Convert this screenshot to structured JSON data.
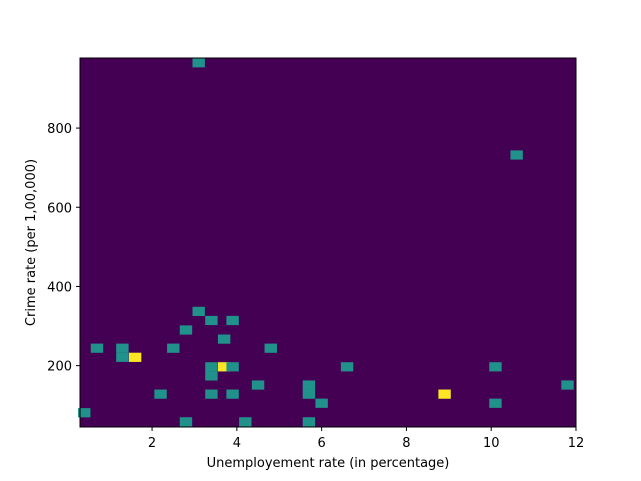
{
  "chart_data": {
    "type": "heatmap",
    "title": "",
    "xlabel": "Unemployement rate (in percentage)",
    "ylabel": "Crime rate (per 1,00,000)",
    "xlim": [
      0.3,
      12.0
    ],
    "ylim": [
      45,
      977
    ],
    "x_ticks": [
      2,
      4,
      6,
      8,
      10,
      12
    ],
    "y_ticks": [
      200,
      400,
      600,
      800
    ],
    "bins": {
      "x": 40,
      "y": 40
    },
    "colormap": {
      "0": "#440154",
      "1": "#21918c",
      "2": "#fde725"
    },
    "background": "#440154",
    "cells": [
      {
        "x": 3.1,
        "y": 965,
        "count": 1
      },
      {
        "x": 10.6,
        "y": 732,
        "count": 1
      },
      {
        "x": 3.1,
        "y": 337,
        "count": 1
      },
      {
        "x": 3.4,
        "y": 314,
        "count": 1
      },
      {
        "x": 3.9,
        "y": 314,
        "count": 1
      },
      {
        "x": 2.8,
        "y": 290,
        "count": 1
      },
      {
        "x": 3.7,
        "y": 267,
        "count": 1
      },
      {
        "x": 0.7,
        "y": 244,
        "count": 1
      },
      {
        "x": 1.3,
        "y": 244,
        "count": 1
      },
      {
        "x": 2.5,
        "y": 244,
        "count": 1
      },
      {
        "x": 4.8,
        "y": 244,
        "count": 1
      },
      {
        "x": 1.3,
        "y": 221,
        "count": 1
      },
      {
        "x": 1.6,
        "y": 221,
        "count": 2
      },
      {
        "x": 3.4,
        "y": 197,
        "count": 1
      },
      {
        "x": 3.7,
        "y": 197,
        "count": 2
      },
      {
        "x": 3.9,
        "y": 197,
        "count": 1
      },
      {
        "x": 6.6,
        "y": 197,
        "count": 1
      },
      {
        "x": 10.1,
        "y": 197,
        "count": 1
      },
      {
        "x": 3.4,
        "y": 174,
        "count": 1
      },
      {
        "x": 4.5,
        "y": 151,
        "count": 1
      },
      {
        "x": 5.7,
        "y": 151,
        "count": 1
      },
      {
        "x": 11.8,
        "y": 151,
        "count": 1
      },
      {
        "x": 2.2,
        "y": 128,
        "count": 1
      },
      {
        "x": 3.4,
        "y": 128,
        "count": 1
      },
      {
        "x": 3.9,
        "y": 128,
        "count": 1
      },
      {
        "x": 5.7,
        "y": 128,
        "count": 1
      },
      {
        "x": 8.9,
        "y": 128,
        "count": 2
      },
      {
        "x": 6.0,
        "y": 105,
        "count": 1
      },
      {
        "x": 10.1,
        "y": 105,
        "count": 1
      },
      {
        "x": 0.4,
        "y": 81,
        "count": 1
      },
      {
        "x": 2.8,
        "y": 58,
        "count": 1
      },
      {
        "x": 4.2,
        "y": 58,
        "count": 1
      },
      {
        "x": 5.7,
        "y": 58,
        "count": 1
      }
    ]
  }
}
